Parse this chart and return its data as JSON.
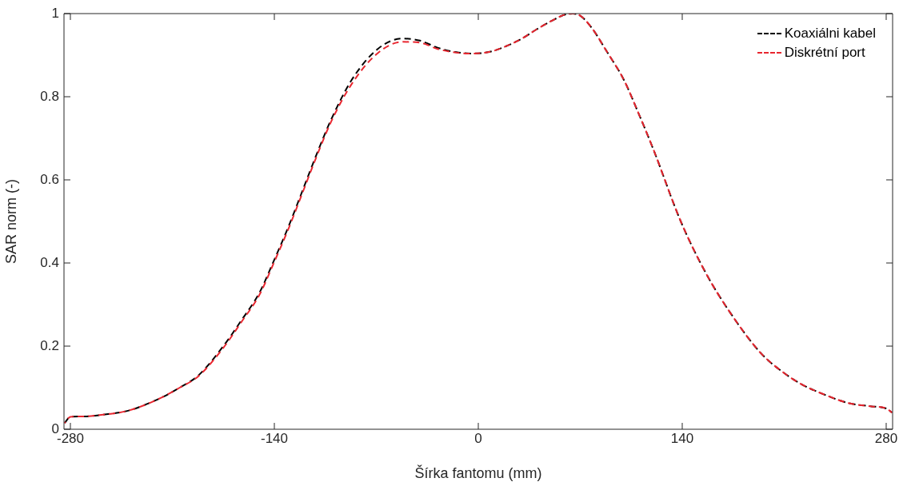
{
  "chart_data": {
    "type": "line",
    "xlabel": "Šírka fantomu (mm)",
    "ylabel": "SAR norm (-)",
    "xlim": [
      -284.4,
      284.4
    ],
    "ylim": [
      0,
      1
    ],
    "xticks": [
      -280,
      -140,
      0,
      140,
      280
    ],
    "yticks": [
      0,
      0.2,
      0.4,
      0.6,
      0.8,
      1
    ],
    "grid": false,
    "legend": "top right",
    "marker": "none",
    "series": [
      {
        "name": "Koaxiálni kabel",
        "color": "#000000",
        "line_style": "dashed",
        "x": [
          -284,
          -280,
          -270,
          -260,
          -240,
          -220,
          -205,
          -192,
          -175,
          -163,
          -150,
          -141,
          -130,
          -120,
          -110,
          -101,
          -87,
          -69,
          -52,
          -40,
          -28,
          -15,
          -5,
          8,
          18,
          30,
          40,
          50,
          60,
          65,
          70,
          78,
          88,
          100,
          110,
          120,
          139,
          156,
          173,
          194,
          210,
          222,
          240,
          254,
          270,
          280,
          284
        ],
        "values": [
          0.015,
          0.03,
          0.031,
          0.034,
          0.045,
          0.072,
          0.1,
          0.13,
          0.2,
          0.26,
          0.33,
          0.4,
          0.49,
          0.58,
          0.67,
          0.745,
          0.84,
          0.915,
          0.94,
          0.935,
          0.918,
          0.907,
          0.904,
          0.908,
          0.92,
          0.94,
          0.962,
          0.982,
          0.998,
          1.0,
          0.995,
          0.965,
          0.91,
          0.84,
          0.76,
          0.675,
          0.5,
          0.377,
          0.28,
          0.183,
          0.135,
          0.108,
          0.08,
          0.063,
          0.055,
          0.05,
          0.04
        ]
      },
      {
        "name": "Diskrétní port",
        "color": "#e8262f",
        "line_style": "dashed",
        "x": [
          -284,
          -280,
          -270,
          -260,
          -240,
          -220,
          -205,
          -192,
          -175,
          -163,
          -150,
          -141,
          -130,
          -120,
          -110,
          -101,
          -87,
          -69,
          -52,
          -40,
          -28,
          -15,
          -5,
          8,
          18,
          30,
          40,
          50,
          60,
          65,
          70,
          78,
          88,
          100,
          110,
          120,
          139,
          156,
          173,
          194,
          210,
          222,
          240,
          254,
          270,
          280,
          284
        ],
        "values": [
          0.015,
          0.03,
          0.031,
          0.034,
          0.045,
          0.072,
          0.1,
          0.128,
          0.196,
          0.256,
          0.325,
          0.395,
          0.485,
          0.575,
          0.665,
          0.74,
          0.83,
          0.905,
          0.932,
          0.93,
          0.915,
          0.906,
          0.904,
          0.908,
          0.92,
          0.94,
          0.962,
          0.982,
          0.998,
          1.0,
          0.995,
          0.965,
          0.91,
          0.84,
          0.76,
          0.675,
          0.5,
          0.377,
          0.28,
          0.183,
          0.135,
          0.108,
          0.08,
          0.063,
          0.055,
          0.05,
          0.04
        ]
      }
    ]
  }
}
